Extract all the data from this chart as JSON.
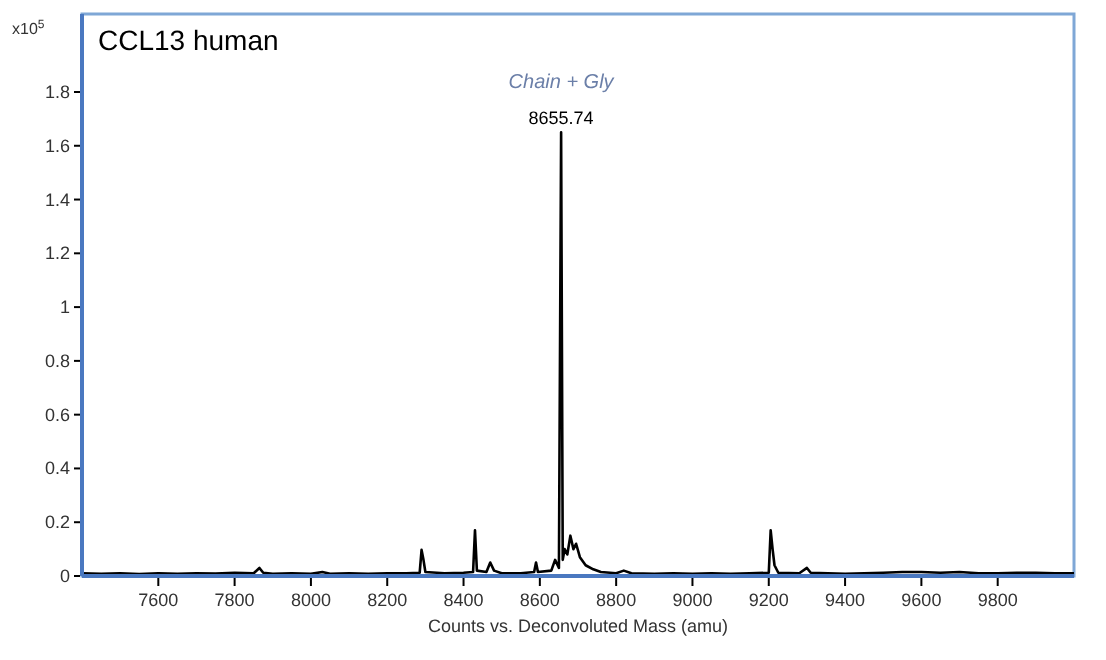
{
  "chart_data": {
    "type": "line",
    "title": "CCL13 human",
    "xlabel": "Counts vs. Deconvoluted Mass (amu)",
    "ylabel": "x10$^{5}$",
    "xlim": [
      7400,
      10000
    ],
    "xticks": [
      7600,
      7800,
      8000,
      8200,
      8400,
      8600,
      8800,
      9000,
      9200,
      9400,
      9600,
      9800
    ],
    "ylim": [
      0,
      2.09
    ],
    "yticks": [
      0,
      0.2,
      0.4,
      0.6,
      0.8,
      1,
      1.2,
      1.4,
      1.6,
      1.8
    ],
    "grid": false,
    "marker": "none",
    "line_style": "solid",
    "annotations": [
      {
        "text": "8655.74",
        "x": 8655.74,
        "y": 1.65
      },
      {
        "text": "Chain + Gly",
        "x": 8655.74,
        "y": 1.65
      }
    ],
    "series": [
      {
        "color": "#000000",
        "x": [
          7400,
          7450,
          7500,
          7550,
          7600,
          7650,
          7700,
          7750,
          7800,
          7850,
          7865,
          7875,
          7900,
          7950,
          8000,
          8030,
          8050,
          8100,
          8150,
          8200,
          8250,
          8285,
          8290,
          8295,
          8300,
          8350,
          8400,
          8425,
          8430,
          8435,
          8460,
          8470,
          8480,
          8500,
          8550,
          8585,
          8590,
          8595,
          8630,
          8640,
          8650,
          8655.74,
          8660,
          8665,
          8672,
          8680,
          8688,
          8695,
          8705,
          8720,
          8740,
          8760,
          8800,
          8820,
          8840,
          8900,
          8950,
          9000,
          9050,
          9100,
          9150,
          9200,
          9205,
          9210,
          9215,
          9225,
          9280,
          9300,
          9310,
          9400,
          9450,
          9500,
          9550,
          9600,
          9650,
          9700,
          9750,
          9800,
          9850,
          9900,
          9950,
          10000
        ],
        "values": [
          0.01,
          0.008,
          0.01,
          0.007,
          0.01,
          0.008,
          0.01,
          0.009,
          0.012,
          0.01,
          0.03,
          0.012,
          0.008,
          0.01,
          0.008,
          0.015,
          0.008,
          0.01,
          0.008,
          0.01,
          0.01,
          0.012,
          0.097,
          0.06,
          0.015,
          0.01,
          0.012,
          0.015,
          0.17,
          0.02,
          0.015,
          0.05,
          0.02,
          0.01,
          0.01,
          0.015,
          0.05,
          0.015,
          0.02,
          0.06,
          0.03,
          1.65,
          0.06,
          0.1,
          0.08,
          0.15,
          0.1,
          0.12,
          0.07,
          0.04,
          0.025,
          0.015,
          0.01,
          0.02,
          0.01,
          0.008,
          0.01,
          0.008,
          0.01,
          0.008,
          0.01,
          0.012,
          0.17,
          0.1,
          0.04,
          0.012,
          0.01,
          0.03,
          0.012,
          0.008,
          0.01,
          0.012,
          0.015,
          0.015,
          0.012,
          0.015,
          0.01,
          0.01,
          0.012,
          0.012,
          0.01,
          0.01
        ]
      }
    ]
  }
}
